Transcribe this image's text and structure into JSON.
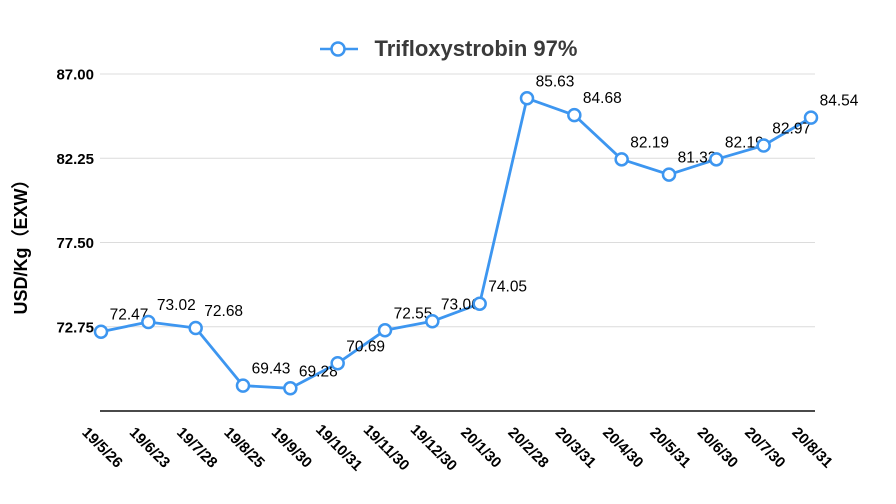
{
  "legend": {
    "label": "Trifloxystrobin 97%"
  },
  "chart_data": {
    "type": "line",
    "title": "Trifloxystrobin 97%",
    "ylabel": "USD/Kg（EXW）",
    "xlabel": "",
    "categories": [
      "19/5/26",
      "19/6/23",
      "19/7/28",
      "19/8/25",
      "19/9/30",
      "19/10/31",
      "19/11/30",
      "19/12/30",
      "20/1/30",
      "20/2/28",
      "20/3/31",
      "20/4/30",
      "20/5/31",
      "20/6/30",
      "20/7/30",
      "20/8/31"
    ],
    "values": [
      72.47,
      73.02,
      72.68,
      69.43,
      69.28,
      70.69,
      72.55,
      73.06,
      74.05,
      85.63,
      84.68,
      82.19,
      81.33,
      82.19,
      82.97,
      84.54
    ],
    "point_labels": [
      "72.47",
      "73.02",
      "72.68",
      "69.43",
      "69.28",
      "70.69",
      "72.55",
      "73.06",
      "74.05",
      "85.63",
      "84.68",
      "82.19",
      "81.33",
      "82.19",
      "82.97",
      "84.54"
    ],
    "ylim": [
      68,
      87
    ],
    "yticks": [
      {
        "label": "87.00",
        "value": 87.0
      },
      {
        "label": "82.25",
        "value": 82.25
      },
      {
        "label": "77.50",
        "value": 77.5
      },
      {
        "label": "72.75",
        "value": 72.75
      }
    ],
    "grid": true,
    "legend_position": "top",
    "marker": "open-circle"
  },
  "colors": {
    "series": "#3D96F0",
    "grid": "#DCDCDC",
    "axis": "#4A4A4A",
    "text": "#000000",
    "title": "#3A3A3A",
    "background": "#FFFFFF"
  }
}
